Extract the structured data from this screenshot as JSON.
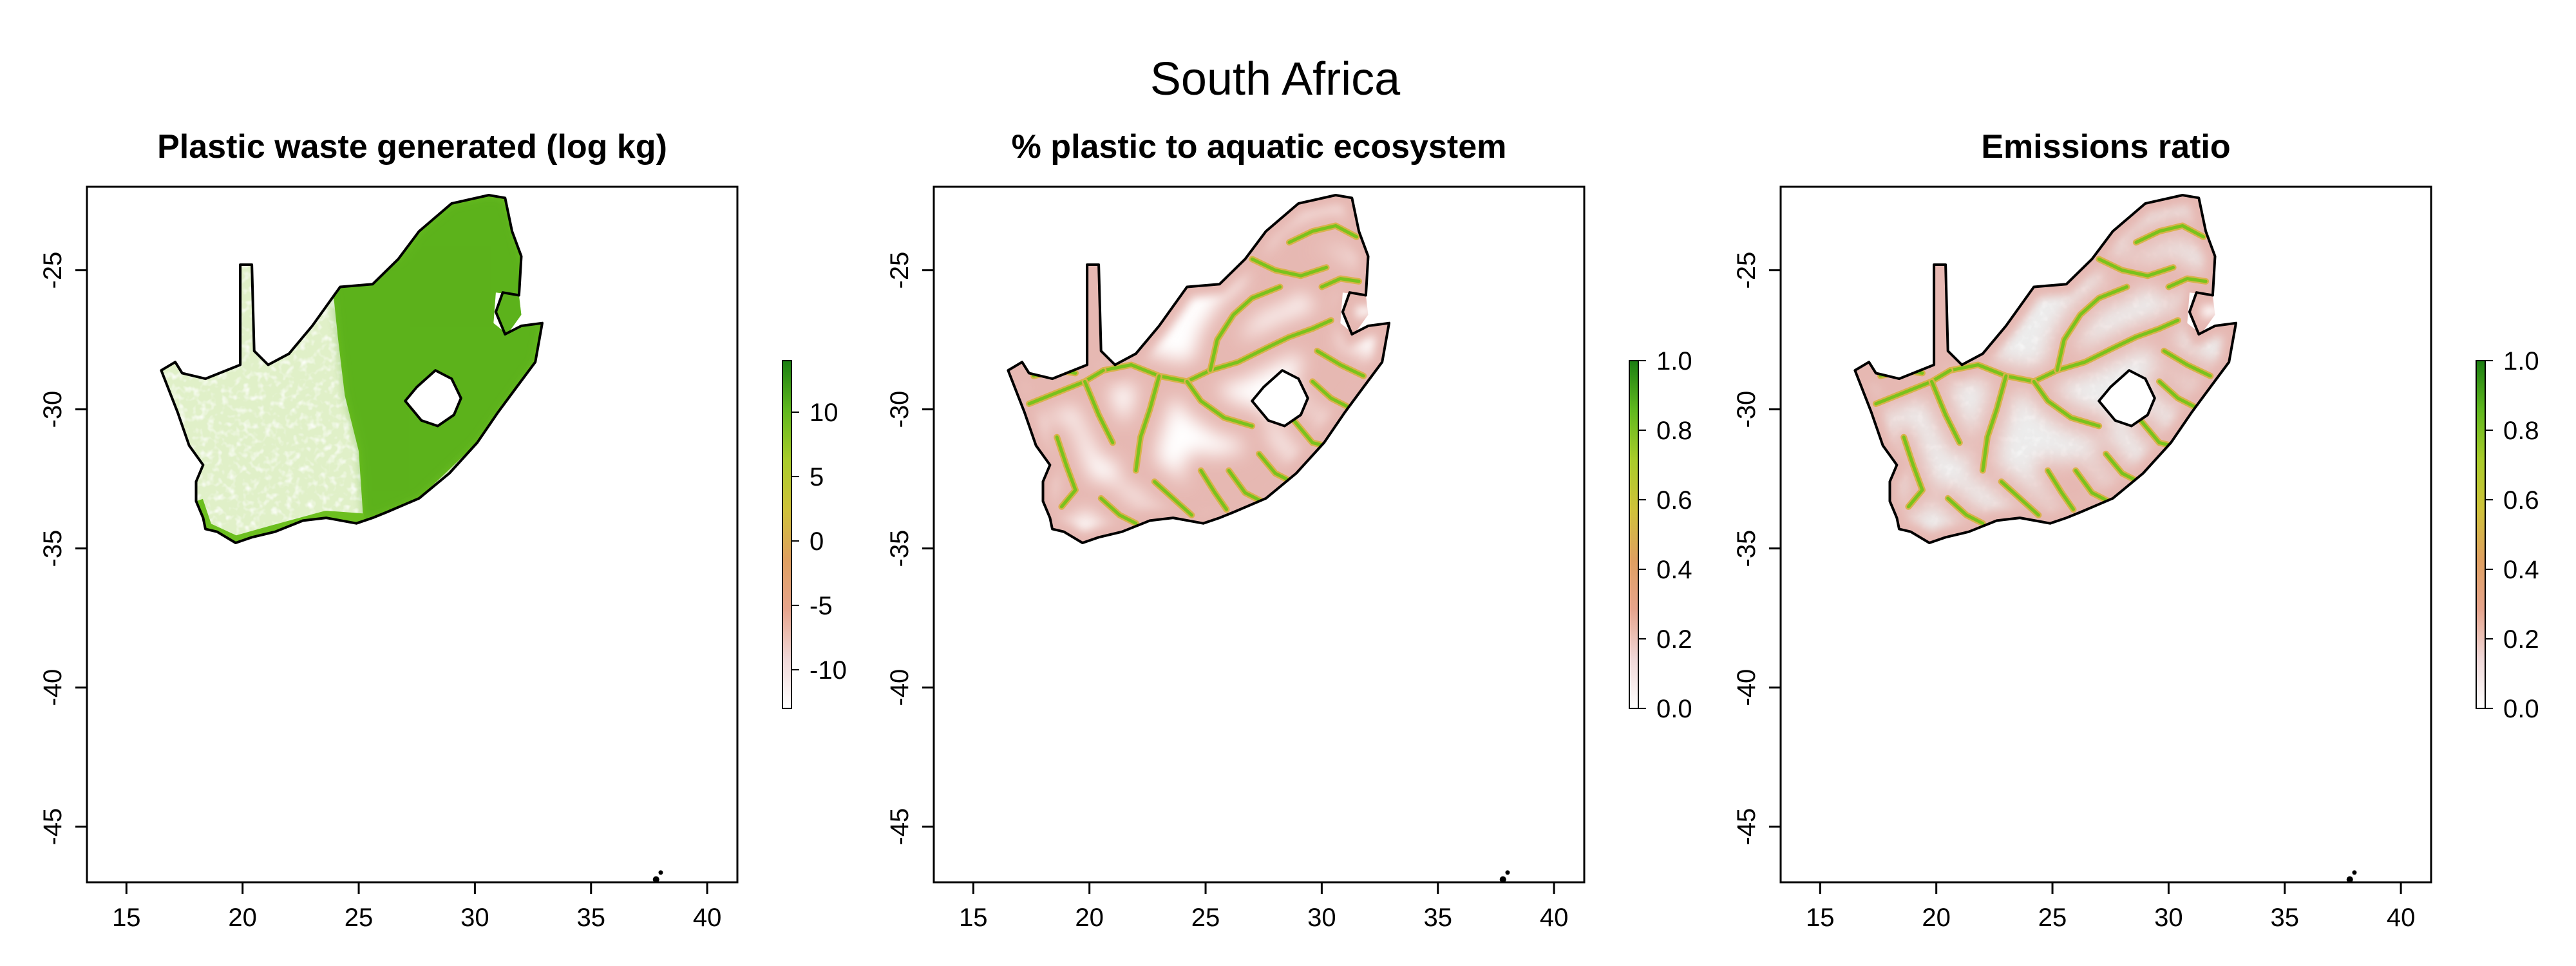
{
  "figure": {
    "title": "South Africa"
  },
  "panels": [
    {
      "id": "waste",
      "title": "Plastic waste generated (log kg)",
      "colorbar": {
        "ticks": [
          "10",
          "5",
          "0",
          "-5",
          "-10"
        ],
        "range": [
          -13,
          14
        ]
      },
      "shading": "waste"
    },
    {
      "id": "aquatic",
      "title": "% plastic to aquatic ecosystem",
      "colorbar": {
        "ticks": [
          "1.0",
          "0.8",
          "0.6",
          "0.4",
          "0.2",
          "0.0"
        ],
        "range": [
          0,
          1
        ]
      },
      "shading": "rivers"
    },
    {
      "id": "emissions",
      "title": "Emissions ratio",
      "colorbar": {
        "ticks": [
          "1.0",
          "0.8",
          "0.6",
          "0.4",
          "0.2",
          "0.0"
        ],
        "range": [
          0,
          1
        ]
      },
      "shading": "rivers-grey"
    }
  ],
  "axes": {
    "x_ticks": [
      "15",
      "20",
      "25",
      "30",
      "35",
      "40"
    ],
    "y_ticks": [
      "-25",
      "-30",
      "-35",
      "-40",
      "-45"
    ],
    "x_range": [
      13.3,
      41.3
    ],
    "y_range": [
      -47.0,
      -22.0
    ]
  },
  "colors": {
    "ramp": [
      "#ffffff",
      "#f0d8d8",
      "#e6a48c",
      "#dfa060",
      "#cfc23a",
      "#a9cc2a",
      "#60b81e",
      "#1b7e12"
    ],
    "land_green": "#6cbf1f",
    "land_dark_green": "#3f9a14",
    "land_white": "#ffffff",
    "river_green": "#79c21c",
    "halo_pink": "#e6b8b2",
    "halo_light": "#f3dcd8",
    "grey_fill": "#ececec",
    "outline": "#000000"
  }
}
